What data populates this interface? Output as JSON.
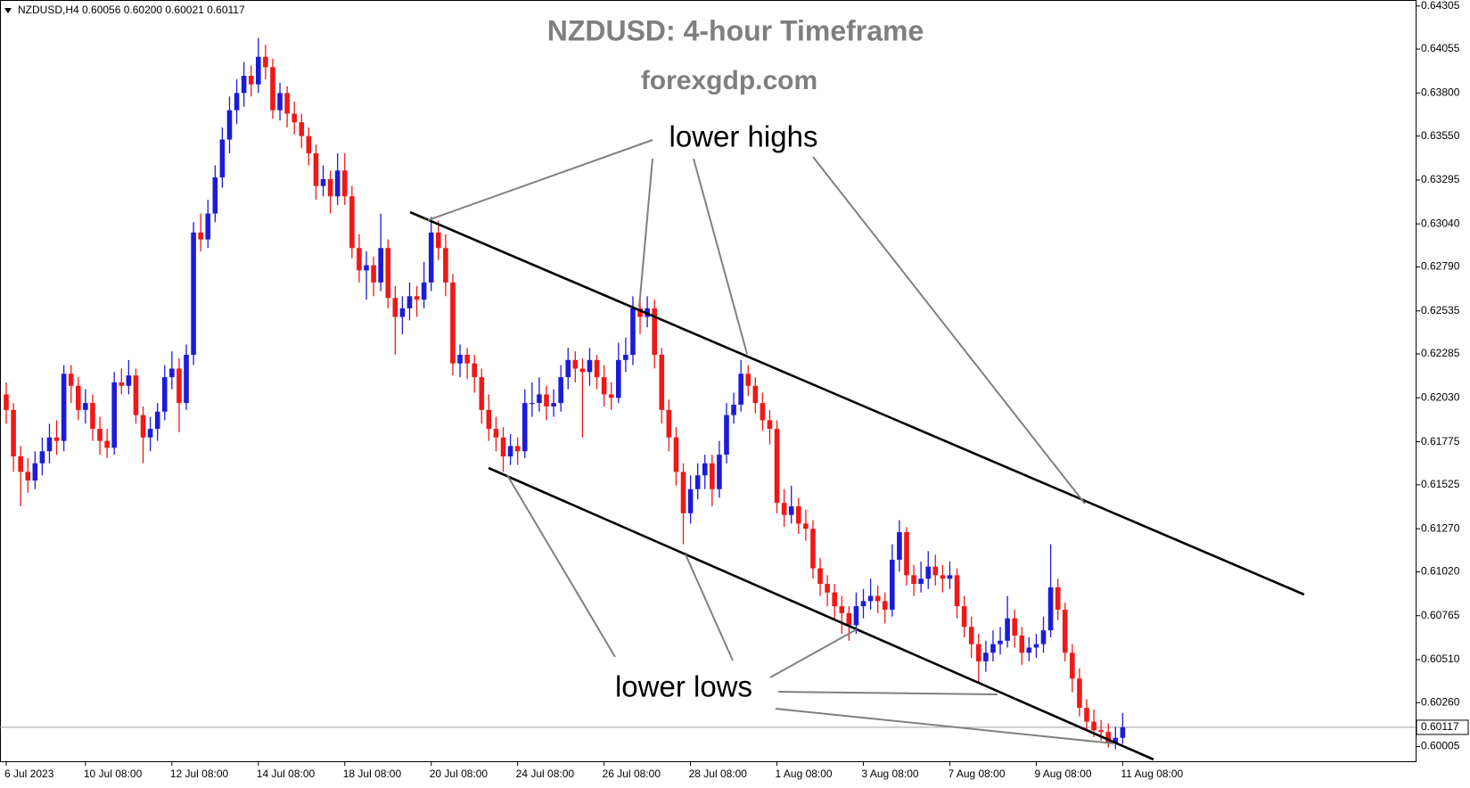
{
  "chart_data": {
    "type": "candlestick",
    "header": "NZDUSD,H4  0.60056 0.60200 0.60021 0.60117",
    "title": "NZDUSD: 4-hour Timeframe",
    "subtitle": "forexgdp.com",
    "annotations": [
      "lower highs",
      "lower lows"
    ],
    "up_color": "#1c1cd8",
    "down_color": "#f01818",
    "ylim": [
      0.5992,
      0.6434
    ],
    "yticks": [
      {
        "value": 0.64305,
        "label": "0.64305"
      },
      {
        "value": 0.64055,
        "label": "0.64055"
      },
      {
        "value": 0.638,
        "label": "0.63800"
      },
      {
        "value": 0.6355,
        "label": "0.63550"
      },
      {
        "value": 0.63295,
        "label": "0.63295"
      },
      {
        "value": 0.6304,
        "label": "0.63040"
      },
      {
        "value": 0.6279,
        "label": "0.62790"
      },
      {
        "value": 0.62535,
        "label": "0.62535"
      },
      {
        "value": 0.62285,
        "label": "0.62285"
      },
      {
        "value": 0.6203,
        "label": "0.62030"
      },
      {
        "value": 0.61775,
        "label": "0.61775"
      },
      {
        "value": 0.61525,
        "label": "0.61525"
      },
      {
        "value": 0.6127,
        "label": "0.61270"
      },
      {
        "value": 0.6102,
        "label": "0.61020"
      },
      {
        "value": 0.60765,
        "label": "0.60765"
      },
      {
        "value": 0.6051,
        "label": "0.60510"
      },
      {
        "value": 0.6026,
        "label": "0.60260"
      },
      {
        "value": 0.60005,
        "label": "0.60005"
      }
    ],
    "current_price": {
      "value": 0.60117,
      "label": "0.60117"
    },
    "x": [
      "6 Jul 2023",
      null,
      null,
      null,
      null,
      null,
      null,
      null,
      null,
      null,
      null,
      "10 Jul 08:00",
      null,
      null,
      null,
      null,
      null,
      null,
      null,
      null,
      null,
      null,
      null,
      "12 Jul 08:00",
      null,
      null,
      null,
      null,
      null,
      null,
      null,
      null,
      null,
      null,
      null,
      "14 Jul 08:00",
      null,
      null,
      null,
      null,
      null,
      null,
      null,
      null,
      null,
      null,
      null,
      "18 Jul 08:00",
      null,
      null,
      null,
      null,
      null,
      null,
      null,
      null,
      null,
      null,
      null,
      "20 Jul 08:00",
      null,
      null,
      null,
      null,
      null,
      null,
      null,
      null,
      null,
      null,
      null,
      "24 Jul 08:00",
      null,
      null,
      null,
      null,
      null,
      null,
      null,
      null,
      null,
      null,
      null,
      "26 Jul 08:00",
      null,
      null,
      null,
      null,
      null,
      null,
      null,
      null,
      null,
      null,
      null,
      "28 Jul 08:00",
      null,
      null,
      null,
      null,
      null,
      null,
      null,
      null,
      null,
      null,
      null,
      "1 Aug 08:00",
      null,
      null,
      null,
      null,
      null,
      null,
      null,
      null,
      null,
      null,
      null,
      "3 Aug 08:00",
      null,
      null,
      null,
      null,
      null,
      null,
      null,
      null,
      null,
      null,
      null,
      "7 Aug 08:00",
      null,
      null,
      null,
      null,
      null,
      null,
      null,
      null,
      null,
      null,
      null,
      "9 Aug 08:00",
      null,
      null,
      null,
      null,
      null,
      null,
      null,
      null,
      null,
      null,
      null,
      "11 Aug 08:00"
    ],
    "ohlc": [
      [
        0.6205,
        0.6212,
        0.6188,
        0.6196
      ],
      [
        0.6196,
        0.62,
        0.616,
        0.6169
      ],
      [
        0.6169,
        0.6175,
        0.614,
        0.616
      ],
      [
        0.616,
        0.6168,
        0.6148,
        0.6155
      ],
      [
        0.6155,
        0.6172,
        0.615,
        0.6165
      ],
      [
        0.6165,
        0.618,
        0.6158,
        0.6172
      ],
      [
        0.6172,
        0.6188,
        0.6165,
        0.618
      ],
      [
        0.618,
        0.619,
        0.617,
        0.6178
      ],
      [
        0.6178,
        0.6222,
        0.6172,
        0.6217
      ],
      [
        0.6217,
        0.6222,
        0.62,
        0.621
      ],
      [
        0.621,
        0.6215,
        0.619,
        0.6196
      ],
      [
        0.6196,
        0.6208,
        0.6188,
        0.62
      ],
      [
        0.62,
        0.6205,
        0.6178,
        0.6185
      ],
      [
        0.6185,
        0.6192,
        0.617,
        0.6178
      ],
      [
        0.6178,
        0.6185,
        0.6168,
        0.6174
      ],
      [
        0.6174,
        0.6218,
        0.617,
        0.6212
      ],
      [
        0.6212,
        0.622,
        0.6205,
        0.621
      ],
      [
        0.621,
        0.6225,
        0.6205,
        0.6216
      ],
      [
        0.6216,
        0.622,
        0.6188,
        0.6193
      ],
      [
        0.6193,
        0.6198,
        0.6165,
        0.618
      ],
      [
        0.618,
        0.6192,
        0.6172,
        0.6185
      ],
      [
        0.6185,
        0.62,
        0.6178,
        0.6195
      ],
      [
        0.6195,
        0.6222,
        0.619,
        0.6215
      ],
      [
        0.6215,
        0.623,
        0.6208,
        0.622
      ],
      [
        0.622,
        0.6226,
        0.6183,
        0.62
      ],
      [
        0.62,
        0.6234,
        0.6196,
        0.6228
      ],
      [
        0.6228,
        0.6305,
        0.6222,
        0.6299
      ],
      [
        0.6299,
        0.631,
        0.6288,
        0.6295
      ],
      [
        0.6295,
        0.6318,
        0.629,
        0.631
      ],
      [
        0.631,
        0.6338,
        0.6305,
        0.6331
      ],
      [
        0.6331,
        0.636,
        0.6325,
        0.6353
      ],
      [
        0.6353,
        0.6378,
        0.6345,
        0.637
      ],
      [
        0.637,
        0.6388,
        0.6362,
        0.638
      ],
      [
        0.638,
        0.6398,
        0.6372,
        0.639
      ],
      [
        0.639,
        0.6396,
        0.6378,
        0.6385
      ],
      [
        0.6385,
        0.6412,
        0.638,
        0.6401
      ],
      [
        0.6401,
        0.6408,
        0.6388,
        0.6395
      ],
      [
        0.6395,
        0.64,
        0.6365,
        0.637
      ],
      [
        0.637,
        0.6386,
        0.6364,
        0.638
      ],
      [
        0.638,
        0.6384,
        0.636,
        0.6368
      ],
      [
        0.6368,
        0.6375,
        0.6356,
        0.6363
      ],
      [
        0.6363,
        0.6368,
        0.6348,
        0.6355
      ],
      [
        0.6355,
        0.636,
        0.6338,
        0.6345
      ],
      [
        0.6345,
        0.635,
        0.6318,
        0.6326
      ],
      [
        0.6326,
        0.6338,
        0.632,
        0.633
      ],
      [
        0.633,
        0.6335,
        0.631,
        0.632
      ],
      [
        0.632,
        0.6345,
        0.6315,
        0.6335
      ],
      [
        0.6335,
        0.6345,
        0.6315,
        0.632
      ],
      [
        0.632,
        0.6326,
        0.6284,
        0.629
      ],
      [
        0.629,
        0.6298,
        0.627,
        0.6277
      ],
      [
        0.6277,
        0.6288,
        0.626,
        0.628
      ],
      [
        0.628,
        0.6285,
        0.6262,
        0.627
      ],
      [
        0.627,
        0.631,
        0.6265,
        0.629
      ],
      [
        0.629,
        0.6295,
        0.6255,
        0.6261
      ],
      [
        0.6261,
        0.6268,
        0.6228,
        0.625
      ],
      [
        0.625,
        0.6262,
        0.624,
        0.6255
      ],
      [
        0.6255,
        0.627,
        0.6248,
        0.6262
      ],
      [
        0.6262,
        0.6268,
        0.625,
        0.626
      ],
      [
        0.626,
        0.6282,
        0.6255,
        0.627
      ],
      [
        0.627,
        0.6308,
        0.6265,
        0.6299
      ],
      [
        0.6299,
        0.6306,
        0.6283,
        0.629
      ],
      [
        0.629,
        0.6298,
        0.6262,
        0.627
      ],
      [
        0.627,
        0.6275,
        0.6216,
        0.6223
      ],
      [
        0.6223,
        0.6234,
        0.6215,
        0.6228
      ],
      [
        0.6228,
        0.6232,
        0.6214,
        0.6223
      ],
      [
        0.6223,
        0.6228,
        0.6206,
        0.6215
      ],
      [
        0.6215,
        0.622,
        0.6188,
        0.6196
      ],
      [
        0.6196,
        0.6205,
        0.6178,
        0.6185
      ],
      [
        0.6185,
        0.6192,
        0.6172,
        0.618
      ],
      [
        0.618,
        0.6186,
        0.616,
        0.6169
      ],
      [
        0.6169,
        0.6182,
        0.6164,
        0.6175
      ],
      [
        0.6175,
        0.618,
        0.6164,
        0.6172
      ],
      [
        0.6172,
        0.6208,
        0.6168,
        0.62
      ],
      [
        0.62,
        0.6212,
        0.6192,
        0.62
      ],
      [
        0.62,
        0.6215,
        0.6195,
        0.6205
      ],
      [
        0.6205,
        0.621,
        0.619,
        0.6198
      ],
      [
        0.6198,
        0.6208,
        0.6192,
        0.62
      ],
      [
        0.62,
        0.6222,
        0.6195,
        0.6215
      ],
      [
        0.6215,
        0.6232,
        0.6208,
        0.6225
      ],
      [
        0.6225,
        0.623,
        0.6212,
        0.622
      ],
      [
        0.622,
        0.6226,
        0.618,
        0.6218
      ],
      [
        0.6218,
        0.6232,
        0.621,
        0.6225
      ],
      [
        0.6225,
        0.6228,
        0.6208,
        0.6215
      ],
      [
        0.6215,
        0.6222,
        0.6198,
        0.6205
      ],
      [
        0.6205,
        0.6212,
        0.6196,
        0.6203
      ],
      [
        0.6203,
        0.6235,
        0.62,
        0.6225
      ],
      [
        0.6225,
        0.6238,
        0.6218,
        0.6228
      ],
      [
        0.6228,
        0.6262,
        0.6222,
        0.6255
      ],
      [
        0.6255,
        0.626,
        0.624,
        0.625
      ],
      [
        0.625,
        0.6262,
        0.6244,
        0.6255
      ],
      [
        0.6255,
        0.626,
        0.622,
        0.6228
      ],
      [
        0.6228,
        0.6232,
        0.6188,
        0.6196
      ],
      [
        0.6196,
        0.6202,
        0.6172,
        0.618
      ],
      [
        0.618,
        0.6186,
        0.6152,
        0.616
      ],
      [
        0.616,
        0.6165,
        0.6118,
        0.6136
      ],
      [
        0.6136,
        0.6158,
        0.613,
        0.615
      ],
      [
        0.615,
        0.6165,
        0.6144,
        0.6158
      ],
      [
        0.6158,
        0.617,
        0.615,
        0.6165
      ],
      [
        0.6165,
        0.617,
        0.614,
        0.615
      ],
      [
        0.615,
        0.6178,
        0.6145,
        0.617
      ],
      [
        0.617,
        0.62,
        0.6165,
        0.6193
      ],
      [
        0.6193,
        0.6206,
        0.6188,
        0.6199
      ],
      [
        0.6199,
        0.6225,
        0.6195,
        0.6217
      ],
      [
        0.6217,
        0.6222,
        0.6204,
        0.621
      ],
      [
        0.621,
        0.6215,
        0.6194,
        0.62
      ],
      [
        0.62,
        0.6206,
        0.6184,
        0.619
      ],
      [
        0.619,
        0.6196,
        0.6176,
        0.6185
      ],
      [
        0.6185,
        0.619,
        0.6136,
        0.6142
      ],
      [
        0.6142,
        0.615,
        0.6128,
        0.6135
      ],
      [
        0.6135,
        0.6152,
        0.613,
        0.614
      ],
      [
        0.614,
        0.6145,
        0.6124,
        0.613
      ],
      [
        0.613,
        0.6138,
        0.612,
        0.6127
      ],
      [
        0.6127,
        0.6132,
        0.6098,
        0.6104
      ],
      [
        0.6104,
        0.611,
        0.6088,
        0.6095
      ],
      [
        0.6095,
        0.61,
        0.6082,
        0.609
      ],
      [
        0.609,
        0.6095,
        0.6074,
        0.6082
      ],
      [
        0.6082,
        0.6088,
        0.6066,
        0.6078
      ],
      [
        0.6078,
        0.6082,
        0.6062,
        0.6071
      ],
      [
        0.6071,
        0.609,
        0.6066,
        0.6082
      ],
      [
        0.6082,
        0.6092,
        0.6075,
        0.6085
      ],
      [
        0.6085,
        0.6098,
        0.608,
        0.6088
      ],
      [
        0.6088,
        0.6094,
        0.6078,
        0.6085
      ],
      [
        0.6085,
        0.609,
        0.6072,
        0.608
      ],
      [
        0.608,
        0.6118,
        0.6076,
        0.6109
      ],
      [
        0.6109,
        0.6132,
        0.6102,
        0.6125
      ],
      [
        0.6125,
        0.6128,
        0.6094,
        0.61
      ],
      [
        0.61,
        0.6106,
        0.6088,
        0.6095
      ],
      [
        0.6095,
        0.6108,
        0.609,
        0.6098
      ],
      [
        0.6098,
        0.6114,
        0.6092,
        0.6105
      ],
      [
        0.6105,
        0.6112,
        0.6094,
        0.61
      ],
      [
        0.61,
        0.6106,
        0.609,
        0.6098
      ],
      [
        0.6098,
        0.6108,
        0.6092,
        0.61
      ],
      [
        0.61,
        0.6104,
        0.6075,
        0.6082
      ],
      [
        0.6082,
        0.6088,
        0.6064,
        0.607
      ],
      [
        0.607,
        0.6076,
        0.6052,
        0.606
      ],
      [
        0.606,
        0.6066,
        0.6038,
        0.605
      ],
      [
        0.605,
        0.6062,
        0.6044,
        0.6055
      ],
      [
        0.6055,
        0.6068,
        0.605,
        0.606
      ],
      [
        0.606,
        0.607,
        0.6054,
        0.6062
      ],
      [
        0.6062,
        0.6088,
        0.6058,
        0.6075
      ],
      [
        0.6075,
        0.608,
        0.6058,
        0.6065
      ],
      [
        0.6065,
        0.607,
        0.6048,
        0.6055
      ],
      [
        0.6055,
        0.6064,
        0.605,
        0.6058
      ],
      [
        0.6058,
        0.6066,
        0.6052,
        0.606
      ],
      [
        0.606,
        0.6076,
        0.6055,
        0.6068
      ],
      [
        0.6068,
        0.6118,
        0.6064,
        0.6093
      ],
      [
        0.6093,
        0.6098,
        0.6074,
        0.608
      ],
      [
        0.608,
        0.6084,
        0.605,
        0.6055
      ],
      [
        0.6055,
        0.606,
        0.6032,
        0.604
      ],
      [
        0.604,
        0.6046,
        0.6018,
        0.6023
      ],
      [
        0.6023,
        0.6028,
        0.601,
        0.6015
      ],
      [
        0.6015,
        0.6022,
        0.6006,
        0.601
      ],
      [
        0.601,
        0.6016,
        0.6004,
        0.6009
      ],
      [
        0.6009,
        0.6014,
        0.6,
        0.6003
      ],
      [
        0.6003,
        0.6012,
        0.5999,
        0.60056
      ],
      [
        0.60056,
        0.602,
        0.60021,
        0.60117
      ]
    ]
  }
}
